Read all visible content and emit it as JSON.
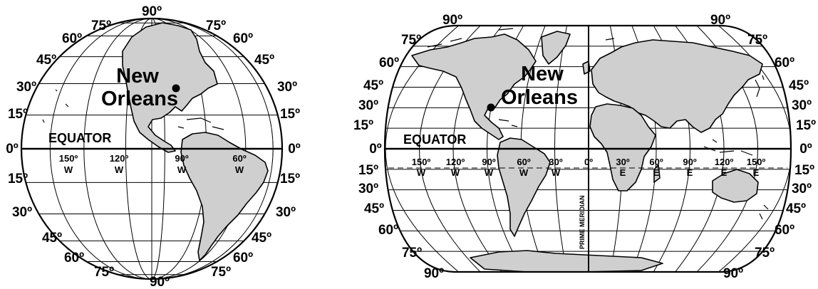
{
  "colors": {
    "land": "#cfcfcf",
    "ocean": "#ffffff",
    "lines": "#000000"
  },
  "city_name_line1": "New",
  "city_name_line2": "Orleans",
  "equator_label": "EQUATOR",
  "prime_meridian_label": "PRIME MERIDIAN",
  "hemisphere_map": {
    "pole_north": "90º",
    "pole_south": "90º",
    "left_latitudes": [
      "75º",
      "60º",
      "45º",
      "30º",
      "15º",
      "0º",
      "15º",
      "30º",
      "45º",
      "60º",
      "75º"
    ],
    "right_latitudes": [
      "75º",
      "60º",
      "45º",
      "30º",
      "15º",
      "0º",
      "15º",
      "30º",
      "45º",
      "60º",
      "75º"
    ],
    "longitudes": [
      {
        "deg": "150º",
        "dir": "W"
      },
      {
        "deg": "120º",
        "dir": "W"
      },
      {
        "deg": "90º",
        "dir": "W"
      },
      {
        "deg": "60º",
        "dir": "W"
      }
    ]
  },
  "world_map": {
    "left_latitudes": [
      "90º",
      "75º",
      "60º",
      "45º",
      "30º",
      "15º",
      "0º",
      "15º",
      "30º",
      "45º",
      "60º",
      "75º",
      "90º"
    ],
    "right_latitudes": [
      "90º",
      "75º",
      "60º",
      "45º",
      "30º",
      "15º",
      "0º",
      "15º",
      "30º",
      "45º",
      "60º",
      "75º",
      "90º"
    ],
    "longitudes": [
      {
        "deg": "150º",
        "dir": "W"
      },
      {
        "deg": "120º",
        "dir": "W"
      },
      {
        "deg": "90º",
        "dir": "W"
      },
      {
        "deg": "60º",
        "dir": "W"
      },
      {
        "deg": "30º",
        "dir": "W"
      },
      {
        "deg": "0º",
        "dir": ""
      },
      {
        "deg": "30º",
        "dir": "E"
      },
      {
        "deg": "60º",
        "dir": "E"
      },
      {
        "deg": "90º",
        "dir": "E"
      },
      {
        "deg": "120º",
        "dir": "E"
      },
      {
        "deg": "150º",
        "dir": "E"
      }
    ]
  }
}
